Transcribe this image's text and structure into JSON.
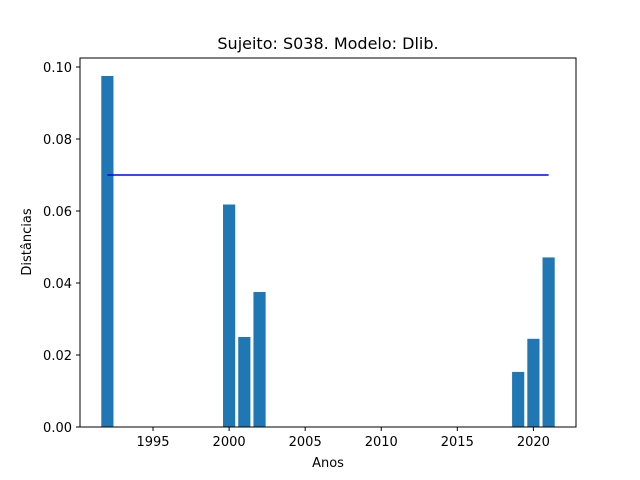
{
  "chart_data": {
    "type": "bar",
    "title": "Sujeito: S038. Modelo: Dlib.",
    "xlabel": "Anos",
    "ylabel": "Distâncias",
    "xlim": [
      1990.2,
      2022.8
    ],
    "ylim": [
      0,
      0.1025
    ],
    "xticks": [
      1995,
      2000,
      2005,
      2010,
      2015,
      2020
    ],
    "yticks": [
      0.0,
      0.02,
      0.04,
      0.06,
      0.08,
      0.1
    ],
    "bar_color": "#1f77b4",
    "bars": [
      {
        "x": 1992,
        "value": 0.0975
      },
      {
        "x": 2000,
        "value": 0.0618
      },
      {
        "x": 2001,
        "value": 0.025
      },
      {
        "x": 2002,
        "value": 0.0375
      },
      {
        "x": 2019,
        "value": 0.0153
      },
      {
        "x": 2020,
        "value": 0.0245
      },
      {
        "x": 2021,
        "value": 0.0471
      }
    ],
    "threshold_line": {
      "value": 0.07,
      "x_start": 1992,
      "x_end": 2021,
      "color": "#0000ff"
    },
    "grid": false,
    "legend": "none"
  }
}
